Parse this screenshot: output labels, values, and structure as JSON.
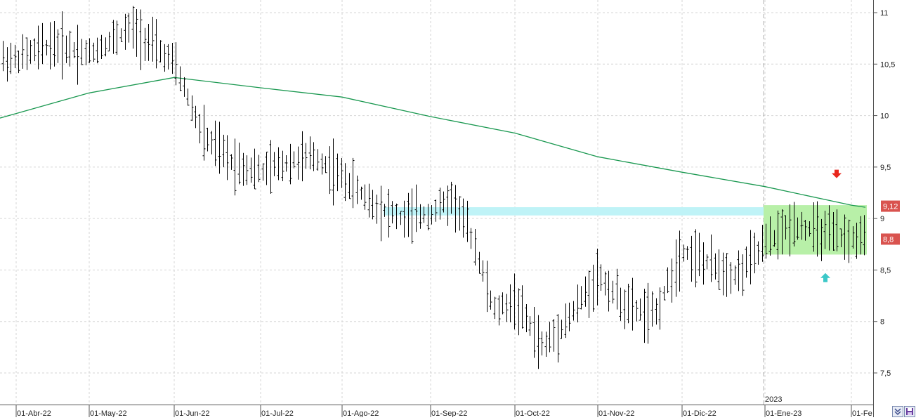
{
  "chart_data": {
    "type": "ohlc",
    "title": "",
    "ylim": [
      7.3,
      11.1
    ],
    "y_ticks": [
      "7,5",
      "8",
      "8,5",
      "9",
      "9,5",
      "10",
      "10,5",
      "11"
    ],
    "y_tick_values": [
      7.5,
      8,
      8.5,
      9,
      9.5,
      10,
      10.5,
      11
    ],
    "x_tick_labels": [
      "01-Abr-22",
      "01-May-22",
      "01-Jun-22",
      "01-Jul-22",
      "01-Ago-22",
      "01-Sep-22",
      "01-Oct-22",
      "01-Nov-22",
      "01-Dic-22",
      "01-Ene-23",
      "01-Fe"
    ],
    "year_marker": "2023",
    "grid": true,
    "price_badges": [
      {
        "label": "9,12",
        "value": 9.12,
        "color": "#d9534f"
      },
      {
        "label": "8,8",
        "value": 8.8,
        "color": "#d9534f"
      }
    ],
    "moving_average": {
      "color": "#1a9850",
      "points": [
        [
          "01-Abr-22",
          10.02
        ],
        [
          "01-May-22",
          10.22
        ],
        [
          "01-Jun-22",
          10.37
        ],
        [
          "01-Jul-22",
          10.27
        ],
        [
          "01-Ago-22",
          10.18
        ],
        [
          "01-Sep-22",
          9.99
        ],
        [
          "01-Oct-22",
          9.83
        ],
        [
          "01-Nov-22",
          9.6
        ],
        [
          "01-Dic-22",
          9.45
        ],
        [
          "01-Ene-23",
          9.31
        ],
        [
          "01-Fe",
          9.13
        ]
      ]
    },
    "zones": [
      {
        "kind": "resistance-band",
        "color": "#bff3f7",
        "from": "Aug-22",
        "to": "01-Ene-23",
        "y_low": 9.03,
        "y_high": 9.11
      },
      {
        "kind": "range-box",
        "color": "#b8f0a8",
        "from": "01-Ene-23",
        "to": "01-Fe",
        "y_low": 8.65,
        "y_high": 9.13
      }
    ],
    "markers": [
      {
        "kind": "down-arrow",
        "color": "#e8261c",
        "date": "mid-Jan-23",
        "value": 9.42
      },
      {
        "kind": "up-arrow",
        "color": "#3cc8c8",
        "date": "mid-Jan-23",
        "value": 8.43
      }
    ],
    "series_anchors": [
      [
        "01-Abr-22",
        10.55
      ],
      [
        "Apr-22 mid",
        10.7
      ],
      [
        "01-May-22",
        10.6
      ],
      [
        "May-22 late",
        10.85
      ],
      [
        "01-Jun-22",
        10.5
      ],
      [
        "Jun-22 mid",
        9.8
      ],
      [
        "Jun-22 late",
        9.55
      ],
      [
        "01-Jul-22",
        9.45
      ],
      [
        "Jul-22 mid",
        9.55
      ],
      [
        "Jul-22 late",
        9.6
      ],
      [
        "01-Ago-22",
        9.4
      ],
      [
        "Ago-22 mid",
        9.15
      ],
      [
        "Ago-22 late",
        9.0
      ],
      [
        "01-Sep-22",
        9.05
      ],
      [
        "Sep-22 mid",
        9.2
      ],
      [
        "Sep-22 late",
        8.8
      ],
      [
        "Sep-22 end",
        8.1
      ],
      [
        "01-Oct-22",
        8.2
      ],
      [
        "Oct-22 mid",
        7.75
      ],
      [
        "Oct-22 late",
        8.05
      ],
      [
        "01-Nov-22",
        8.45
      ],
      [
        "Nov-22 mid",
        8.15
      ],
      [
        "Nov-22 late",
        8.05
      ],
      [
        "01-Dic-22",
        8.7
      ],
      [
        "Dic-22 mid",
        8.55
      ],
      [
        "Dic-22 late",
        8.45
      ],
      [
        "01-Ene-23",
        8.75
      ],
      [
        "Ene-23 mid",
        8.95
      ],
      [
        "Ene-23 late",
        8.85
      ],
      [
        "01-Fe",
        8.8
      ]
    ]
  },
  "controls": {
    "scale_icon": "double-chevron-down-icon",
    "save_icon": "floppy-disk-icon"
  }
}
